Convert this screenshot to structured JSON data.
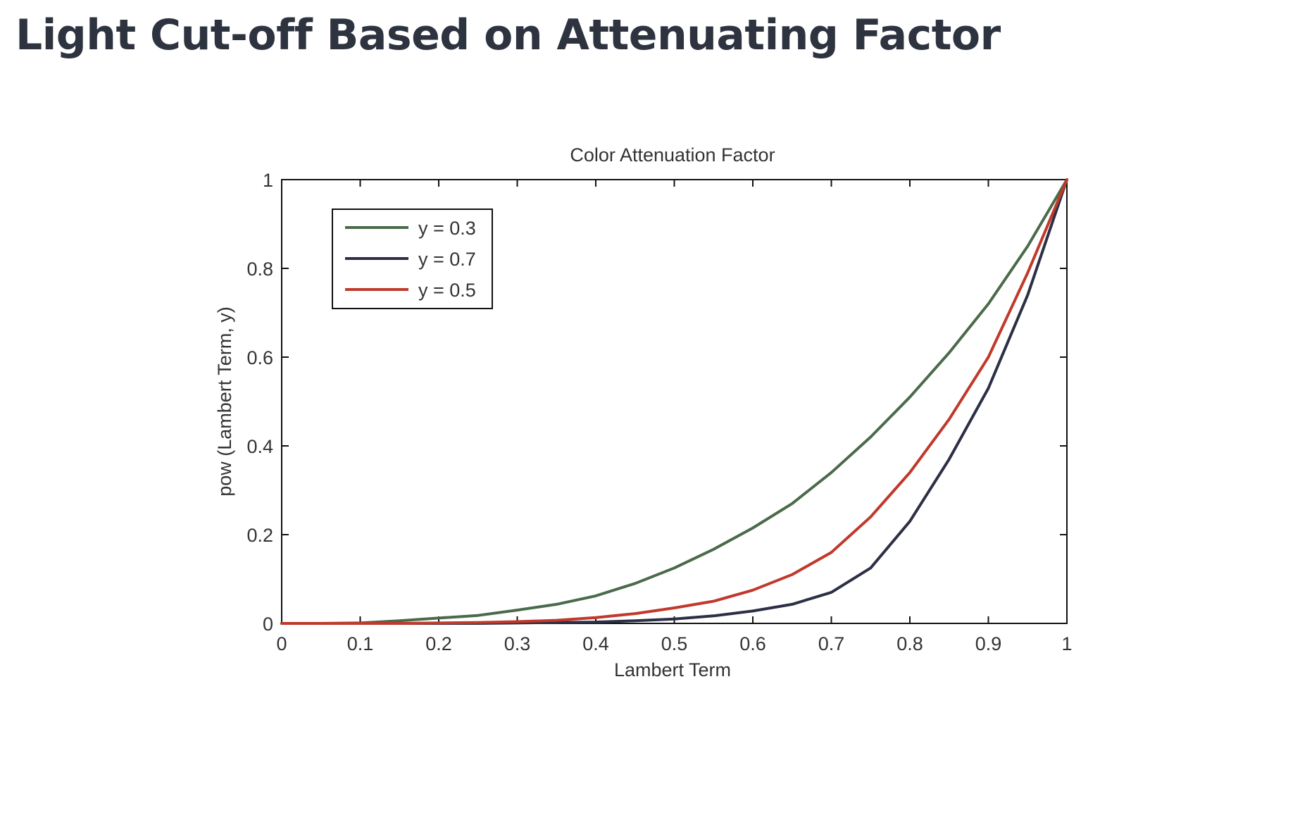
{
  "page": {
    "title": "Light Cut-off Based on Attenuating Factor"
  },
  "chart_data": {
    "type": "line",
    "title": "Color Attenuation Factor",
    "xlabel": "Lambert Term",
    "ylabel": "pow (Lambert Term, y)",
    "xlim": [
      0,
      1
    ],
    "ylim": [
      0,
      1
    ],
    "xticks": [
      "0",
      "0.1",
      "0.2",
      "0.3",
      "0.4",
      "0.5",
      "0.6",
      "0.7",
      "0.8",
      "0.9",
      "1"
    ],
    "yticks": [
      "0",
      "0.2",
      "0.4",
      "0.6",
      "0.8",
      "1"
    ],
    "grid": false,
    "legend_position": "top-left",
    "x": [
      0,
      0.05,
      0.1,
      0.15,
      0.2,
      0.25,
      0.3,
      0.35,
      0.4,
      0.45,
      0.5,
      0.55,
      0.6,
      0.65,
      0.7,
      0.75,
      0.8,
      0.85,
      0.9,
      0.95,
      1
    ],
    "series": [
      {
        "name": "y = 0.3",
        "color": "#4a6a4a",
        "values": [
          0,
          0,
          0.001,
          0.006,
          0.012,
          0.018,
          0.03,
          0.043,
          0.062,
          0.09,
          0.125,
          0.167,
          0.215,
          0.27,
          0.34,
          0.42,
          0.51,
          0.61,
          0.72,
          0.85,
          1
        ]
      },
      {
        "name": "y = 0.7",
        "color": "#2c2f45",
        "values": [
          0,
          0,
          0,
          0,
          0,
          0,
          0.001,
          0.002,
          0.003,
          0.006,
          0.01,
          0.017,
          0.028,
          0.043,
          0.07,
          0.125,
          0.23,
          0.37,
          0.53,
          0.74,
          1
        ]
      },
      {
        "name": "y = 0.5",
        "color": "#c0392b",
        "values": [
          0,
          0,
          0,
          0,
          0.001,
          0.002,
          0.004,
          0.007,
          0.013,
          0.022,
          0.035,
          0.05,
          0.075,
          0.11,
          0.16,
          0.24,
          0.34,
          0.46,
          0.6,
          0.79,
          1
        ]
      }
    ]
  }
}
